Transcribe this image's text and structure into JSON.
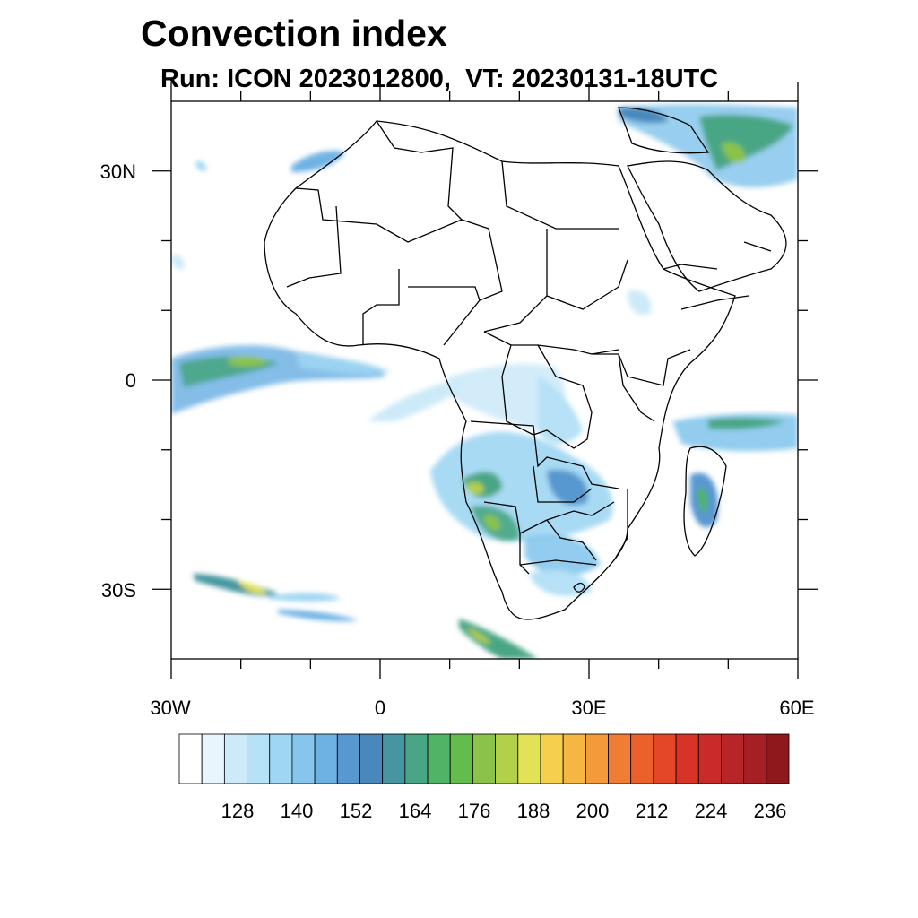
{
  "title": "Convection index",
  "subtitle": "Run: ICON 2023012800,  VT: 20230131-18UTC",
  "map": {
    "region": "Africa",
    "lon_range": [
      -30,
      60
    ],
    "lat_range": [
      -40,
      40
    ],
    "lon_tick_labels": [
      {
        "lon": -30,
        "text": "30W"
      },
      {
        "lon": 0,
        "text": "0"
      },
      {
        "lon": 30,
        "text": "30E"
      },
      {
        "lon": 60,
        "text": "60E"
      }
    ],
    "lat_tick_labels": [
      {
        "lat": 30,
        "text": "30N"
      },
      {
        "lat": 0,
        "text": "0"
      },
      {
        "lat": -30,
        "text": "30S"
      }
    ]
  },
  "colorbar": {
    "colors": [
      "#ffffff",
      "#e9f5fc",
      "#cdeaf8",
      "#b6e1f6",
      "#9ed6f3",
      "#86c6ec",
      "#6eb2e4",
      "#5898d0",
      "#4a88bb",
      "#4596a0",
      "#48a684",
      "#50b464",
      "#62bd4d",
      "#8bc34a",
      "#b3d04a",
      "#e2e256",
      "#f6cf4f",
      "#f6b643",
      "#f49a3b",
      "#ef7d33",
      "#eb612c",
      "#e34727",
      "#d83327",
      "#c92a2a",
      "#b82529",
      "#a51f24",
      "#8f181c"
    ],
    "labels": [
      "128",
      "140",
      "152",
      "164",
      "176",
      "188",
      "200",
      "212",
      "224",
      "236"
    ]
  }
}
